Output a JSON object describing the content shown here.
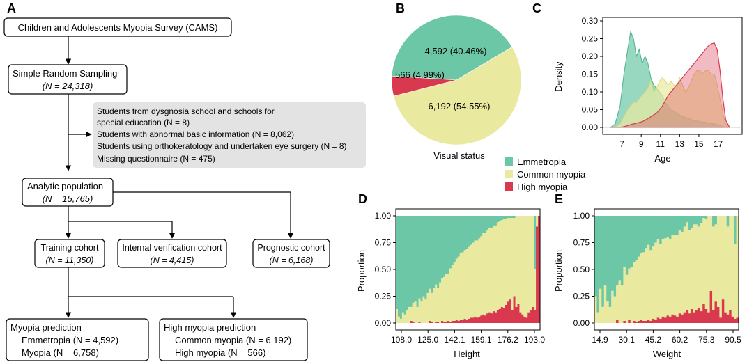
{
  "panels": {
    "a": "A",
    "b": "B",
    "c": "C",
    "d": "D",
    "e": "E"
  },
  "flow": {
    "survey": "Children and Adolescents Myopia Survey (CAMS)",
    "sampling": {
      "title": "Simple Random Sampling",
      "n": "(N = 24,318)"
    },
    "exclusions": [
      "Students from dysgnosia school and schools for",
      "special education (N = 8)",
      "Students with abnormal basic information (N = 8,062)",
      "Students using orthokeratology and undertaken eye surgery (N = 8)",
      "Missing questionnaire (N = 475)"
    ],
    "analytic": {
      "title": "Analytic population",
      "n": "(N = 15,765)"
    },
    "training": {
      "title": "Training cohort",
      "n": "(N = 11,350)"
    },
    "internal": {
      "title": "Internal verification cohort",
      "n": "(N = 4,415)"
    },
    "prognostic": {
      "title": "Prognostic cohort",
      "n": "(N = 6,168)"
    },
    "myopia_pred": {
      "title": "Myopia prediction",
      "l1": "Emmetropia (N = 4,592)",
      "l2": "Myopia (N = 6,758)"
    },
    "high_pred": {
      "title": "High myopia prediction",
      "l1": "Common myopia (N = 6,192)",
      "l2": "High myopia (N = 566)"
    }
  },
  "colors": {
    "emmetropia": "#6cc7a6",
    "common": "#e9e9a0",
    "high": "#d9394f"
  },
  "chart_data": [
    {
      "type": "pie",
      "xlabel": "Visual status",
      "slices": [
        {
          "name": "Emmetropia",
          "value": 4592,
          "label": "4,592 (40.46%)"
        },
        {
          "name": "Common myopia",
          "value": 6192,
          "label": "6,192 (54.55%)"
        },
        {
          "name": "High myopia",
          "value": 566,
          "label": "566 (4.99%)"
        }
      ],
      "legend": [
        "Emmetropia",
        "Common myopia",
        "High myopia"
      ]
    },
    {
      "type": "area",
      "xlabel": "Age",
      "ylabel": "Density",
      "xlim": [
        5,
        19.5
      ],
      "ylim": [
        0,
        0.3
      ],
      "xticks": [
        "7",
        "9",
        "11",
        "13",
        "15",
        "17"
      ],
      "yticks": [
        "0.00",
        "0.05",
        "0.10",
        "0.15",
        "0.20",
        "0.25",
        "0.30"
      ],
      "x": [
        5.8,
        6.3,
        6.8,
        7.2,
        7.6,
        7.9,
        8.2,
        8.5,
        8.8,
        9.1,
        9.4,
        9.7,
        10.0,
        10.3,
        10.6,
        10.9,
        11.2,
        11.5,
        11.8,
        12.1,
        12.4,
        12.7,
        13.0,
        13.3,
        13.6,
        13.9,
        14.2,
        14.5,
        14.8,
        15.1,
        15.4,
        15.7,
        16.0,
        16.3,
        16.6,
        16.9,
        17.2,
        17.5,
        17.8,
        18.2
      ],
      "series": [
        {
          "name": "Emmetropia",
          "values": [
            0.0,
            0.01,
            0.06,
            0.15,
            0.22,
            0.27,
            0.25,
            0.2,
            0.22,
            0.18,
            0.2,
            0.18,
            0.14,
            0.12,
            0.11,
            0.1,
            0.09,
            0.07,
            0.06,
            0.05,
            0.045,
            0.04,
            0.035,
            0.03,
            0.028,
            0.025,
            0.022,
            0.02,
            0.018,
            0.016,
            0.015,
            0.014,
            0.012,
            0.011,
            0.01,
            0.008,
            0.005,
            0.002,
            0.001,
            0.0
          ]
        },
        {
          "name": "Common myopia",
          "values": [
            0.0,
            0.0,
            0.01,
            0.03,
            0.05,
            0.06,
            0.07,
            0.07,
            0.08,
            0.09,
            0.1,
            0.11,
            0.13,
            0.1,
            0.11,
            0.13,
            0.14,
            0.13,
            0.12,
            0.13,
            0.12,
            0.11,
            0.14,
            0.12,
            0.1,
            0.11,
            0.13,
            0.15,
            0.16,
            0.16,
            0.15,
            0.16,
            0.16,
            0.15,
            0.15,
            0.12,
            0.08,
            0.04,
            0.01,
            0.0
          ]
        },
        {
          "name": "High myopia",
          "values": [
            0.0,
            0.0,
            0.0,
            0.002,
            0.005,
            0.008,
            0.01,
            0.012,
            0.014,
            0.016,
            0.02,
            0.025,
            0.03,
            0.035,
            0.04,
            0.05,
            0.06,
            0.075,
            0.09,
            0.1,
            0.11,
            0.12,
            0.13,
            0.14,
            0.15,
            0.16,
            0.17,
            0.18,
            0.19,
            0.2,
            0.21,
            0.22,
            0.23,
            0.235,
            0.238,
            0.22,
            0.16,
            0.08,
            0.02,
            0.0
          ]
        }
      ]
    },
    {
      "type": "bar",
      "stacked": true,
      "xlabel": "Height",
      "ylabel": "Proportion",
      "xticks": [
        "108.0",
        "125.0",
        "142.1",
        "159.1",
        "176.2",
        "193.0"
      ],
      "yticks": [
        "0.00",
        "0.25",
        "0.50",
        "0.75",
        "1.00"
      ],
      "series": [
        {
          "name": "High myopia",
          "values": [
            0,
            0,
            0,
            0,
            0,
            0,
            0,
            0.02,
            0.01,
            0,
            0,
            0.01,
            0,
            0,
            0,
            0,
            0.02,
            0.01,
            0,
            0.01,
            0.01,
            0,
            0.02,
            0.01,
            0.01,
            0.02,
            0.01,
            0.02,
            0.02,
            0.03,
            0.02,
            0.03,
            0.03,
            0.04,
            0.03,
            0.04,
            0.05,
            0.05,
            0.06,
            0.05,
            0.06,
            0.07,
            0.08,
            0.07,
            0.09,
            0.1,
            0.09,
            0.11,
            0.1,
            0.12,
            0.13,
            0.15,
            0.14,
            0.17,
            0.2,
            0.22,
            0.12,
            0.25,
            0.15,
            0.18,
            0.1,
            0.08,
            0.06,
            0.05,
            0.1,
            0.12,
            0.15,
            0.12,
            0.9,
            1.0
          ]
        },
        {
          "name": "Common myopia",
          "values": [
            0.13,
            0.06,
            0.04,
            0.1,
            0.08,
            0.12,
            0.15,
            0.13,
            0.18,
            0.2,
            0.15,
            0.22,
            0.2,
            0.25,
            0.22,
            0.28,
            0.3,
            0.27,
            0.33,
            0.35,
            0.32,
            0.38,
            0.4,
            0.42,
            0.45,
            0.44,
            0.5,
            0.52,
            0.55,
            0.57,
            0.6,
            0.62,
            0.63,
            0.64,
            0.66,
            0.67,
            0.68,
            0.7,
            0.71,
            0.72,
            0.73,
            0.74,
            0.76,
            0.77,
            0.78,
            0.79,
            0.8,
            0.8,
            0.81,
            0.82,
            0.82,
            0.81,
            0.83,
            0.8,
            0.78,
            0.76,
            0.86,
            0.73,
            0.85,
            0.82,
            0.9,
            0.92,
            0.94,
            0.95,
            0.9,
            0.88,
            0.85,
            0.38,
            0.1,
            0.0
          ]
        },
        {
          "name": "Emmetropia",
          "values": [
            0.87,
            0.94,
            0.96,
            0.9,
            0.92,
            0.88,
            0.85,
            0.85,
            0.81,
            0.8,
            0.85,
            0.77,
            0.8,
            0.75,
            0.78,
            0.72,
            0.68,
            0.72,
            0.67,
            0.64,
            0.67,
            0.62,
            0.58,
            0.57,
            0.54,
            0.54,
            0.49,
            0.46,
            0.43,
            0.4,
            0.38,
            0.35,
            0.34,
            0.32,
            0.31,
            0.29,
            0.27,
            0.25,
            0.23,
            0.23,
            0.21,
            0.19,
            0.16,
            0.16,
            0.13,
            0.11,
            0.11,
            0.09,
            0.09,
            0.06,
            0.05,
            0.04,
            0.03,
            0.03,
            0.02,
            0.02,
            0.02,
            0.02,
            0.0,
            0.0,
            0.0,
            0.0,
            0.0,
            0.0,
            0.0,
            0.0,
            0.0,
            0.5,
            0.0,
            0.0
          ]
        }
      ]
    },
    {
      "type": "bar",
      "stacked": true,
      "xlabel": "Weight",
      "ylabel": "Proportion",
      "xticks": [
        "14.9",
        "30.1",
        "45.2",
        "60.2",
        "75.3",
        "90.5"
      ],
      "yticks": [
        "0.00",
        "0.25",
        "0.50",
        "0.75",
        "1.00"
      ],
      "series": [
        {
          "name": "High myopia",
          "values": [
            0,
            0,
            0,
            0,
            0,
            0,
            0,
            0,
            0,
            0.03,
            0,
            0,
            0.02,
            0,
            0.03,
            0,
            0.02,
            0.01,
            0.02,
            0.03,
            0.02,
            0.02,
            0.03,
            0.02,
            0.04,
            0.03,
            0.05,
            0.04,
            0.06,
            0.05,
            0.07,
            0.06,
            0.08,
            0.07,
            0.06,
            0.09,
            0.08,
            0.1,
            0.12,
            0.09,
            0.13,
            0.1,
            0.12,
            0.14,
            0.11,
            0.18,
            0.13,
            0.1,
            0.3,
            0.12,
            0.2,
            0.15,
            0.05,
            0.22,
            0.1,
            0.08,
            0.12,
            0.06,
            0.04,
            0.05
          ]
        },
        {
          "name": "Common myopia",
          "values": [
            0.25,
            0.1,
            0.32,
            0.15,
            0.35,
            0.2,
            0.15,
            0.3,
            0.25,
            0.32,
            0.4,
            0.35,
            0.5,
            0.45,
            0.48,
            0.52,
            0.55,
            0.58,
            0.6,
            0.62,
            0.64,
            0.68,
            0.7,
            0.66,
            0.68,
            0.72,
            0.73,
            0.7,
            0.72,
            0.74,
            0.73,
            0.72,
            0.74,
            0.75,
            0.76,
            0.78,
            0.77,
            0.8,
            0.82,
            0.78,
            0.76,
            0.82,
            0.8,
            0.76,
            0.82,
            0.8,
            0.84,
            0.9,
            0.7,
            0.78,
            0.72,
            0.85,
            0.95,
            0.78,
            0.9,
            0.82,
            0.88,
            0.94,
            0.7,
            0.95
          ]
        },
        {
          "name": "Emmetropia",
          "values": [
            0.75,
            0.9,
            0.68,
            0.85,
            0.65,
            0.8,
            0.85,
            0.7,
            0.75,
            0.65,
            0.6,
            0.65,
            0.48,
            0.55,
            0.49,
            0.48,
            0.43,
            0.41,
            0.38,
            0.35,
            0.34,
            0.3,
            0.27,
            0.32,
            0.28,
            0.25,
            0.22,
            0.26,
            0.22,
            0.21,
            0.2,
            0.22,
            0.18,
            0.18,
            0.18,
            0.13,
            0.15,
            0.1,
            0.06,
            0.13,
            0.11,
            0.08,
            0.08,
            0.1,
            0.07,
            0.02,
            0.03,
            0.0,
            0.0,
            0.1,
            0.08,
            0.0,
            0.0,
            0.0,
            0.0,
            0.1,
            0.0,
            0.0,
            0.26,
            0.0
          ]
        }
      ]
    }
  ]
}
